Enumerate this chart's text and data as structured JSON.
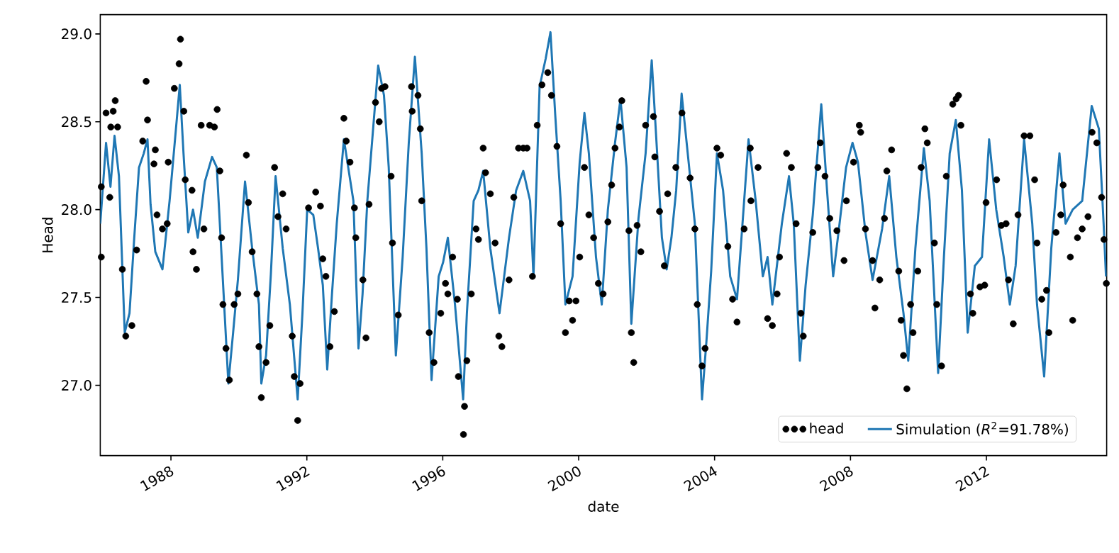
{
  "chart_data": {
    "type": "scatter",
    "xlabel": "date",
    "ylabel": "Head",
    "xlim": [
      1985.92,
      2015.54
    ],
    "ylim": [
      26.6,
      29.11
    ],
    "xticks": [
      1988,
      1992,
      1996,
      2000,
      2004,
      2008,
      2012
    ],
    "yticks": [
      {
        "value": 27,
        "label": "27.0"
      },
      {
        "value": 27.5,
        "label": "27.5"
      },
      {
        "value": 28,
        "label": "28.0"
      },
      {
        "value": 28.5,
        "label": "28.5"
      },
      {
        "value": 29,
        "label": "29.0"
      }
    ],
    "legend": "bottom right",
    "series": [
      {
        "name": "head",
        "marker": "circle",
        "color": "#000000",
        "x": [
          1985.95,
          1985.95,
          1986.09,
          1986.3,
          1986.36,
          1986.23,
          1986.43,
          1986.2,
          1986.57,
          1986.67,
          1986.85,
          1986.99,
          1987.27,
          1987.31,
          1987.17,
          1987.5,
          1987.54,
          1987.59,
          1987.75,
          1987.89,
          1987.92,
          1988.1,
          1988.24,
          1988.28,
          1988.38,
          1988.42,
          1988.62,
          1988.65,
          1988.75,
          1988.89,
          1988.97,
          1989.14,
          1989.28,
          1989.36,
          1989.44,
          1989.49,
          1989.53,
          1989.62,
          1989.72,
          1989.86,
          1989.97,
          1990.22,
          1990.28,
          1990.39,
          1990.53,
          1990.66,
          1990.59,
          1990.8,
          1990.91,
          1991.05,
          1991.15,
          1991.29,
          1991.39,
          1991.57,
          1991.63,
          1991.73,
          1991.8,
          1992.05,
          1992.26,
          1992.4,
          1992.47,
          1992.56,
          1992.68,
          1992.81,
          1993.09,
          1993.16,
          1993.27,
          1993.4,
          1993.44,
          1993.65,
          1993.74,
          1993.83,
          1994.02,
          1994.13,
          1994.2,
          1994.3,
          1994.48,
          1994.52,
          1994.69,
          1995.08,
          1995.1,
          1995.27,
          1995.34,
          1995.38,
          1995.6,
          1995.74,
          1995.94,
          1996.08,
          1996.15,
          1996.29,
          1996.43,
          1996.46,
          1996.61,
          1996.64,
          1996.71,
          1996.84,
          1996.98,
          1997.05,
          1997.19,
          1997.26,
          1997.4,
          1997.54,
          1997.65,
          1997.74,
          1997.95,
          1998.09,
          1998.23,
          1998.37,
          1998.48,
          1998.64,
          1998.78,
          1998.92,
          1999.09,
          1999.2,
          1999.36,
          1999.47,
          1999.61,
          1999.72,
          1999.82,
          1999.92,
          2000.03,
          2000.17,
          2000.3,
          2000.44,
          2000.58,
          2000.72,
          2000.86,
          2000.97,
          2001.07,
          2001.2,
          2001.27,
          2001.48,
          2001.55,
          2001.62,
          2001.72,
          2001.83,
          2001.97,
          2002.2,
          2002.24,
          2002.38,
          2002.52,
          2002.62,
          2002.86,
          2003.04,
          2003.28,
          2003.42,
          2003.49,
          2003.63,
          2003.72,
          2004.07,
          2004.18,
          2004.39,
          2004.53,
          2004.66,
          2004.87,
          2005.05,
          2005.07,
          2005.28,
          2005.56,
          2005.7,
          2005.84,
          2005.91,
          2006.12,
          2006.26,
          2006.4,
          2006.54,
          2006.61,
          2006.89,
          2007.04,
          2007.11,
          2007.25,
          2007.39,
          2007.6,
          2007.81,
          2007.88,
          2008.09,
          2008.26,
          2008.3,
          2008.44,
          2008.65,
          2008.72,
          2008.86,
          2009.0,
          2009.07,
          2009.21,
          2009.42,
          2009.49,
          2009.56,
          2009.66,
          2009.77,
          2009.84,
          2009.98,
          2010.08,
          2010.19,
          2010.26,
          2010.47,
          2010.54,
          2010.68,
          2010.82,
          2011.01,
          2011.11,
          2011.18,
          2011.25,
          2011.53,
          2011.6,
          2011.81,
          2011.95,
          2011.99,
          2012.3,
          2012.44,
          2012.58,
          2012.65,
          2012.79,
          2012.93,
          2013.11,
          2013.28,
          2013.42,
          2013.49,
          2013.63,
          2013.77,
          2013.84,
          2014.05,
          2014.19,
          2014.26,
          2014.47,
          2014.54,
          2014.68,
          2014.82,
          2014.99,
          2015.11,
          2015.25,
          2015.39,
          2015.46,
          2015.53
        ],
        "values": [
          28.13,
          27.73,
          28.55,
          28.56,
          28.62,
          28.47,
          28.47,
          28.07,
          27.66,
          27.28,
          27.34,
          27.77,
          28.73,
          28.51,
          28.39,
          28.26,
          28.34,
          27.97,
          27.89,
          27.92,
          28.27,
          28.69,
          28.83,
          28.97,
          28.56,
          28.17,
          28.11,
          27.76,
          27.66,
          28.48,
          27.89,
          28.48,
          28.47,
          28.57,
          28.22,
          27.84,
          27.46,
          27.21,
          27.03,
          27.46,
          27.52,
          28.31,
          28.04,
          27.76,
          27.52,
          26.93,
          27.22,
          27.13,
          27.34,
          28.24,
          27.96,
          28.09,
          27.89,
          27.28,
          27.05,
          26.8,
          27.01,
          28.01,
          28.1,
          28.02,
          27.72,
          27.62,
          27.22,
          27.42,
          28.52,
          28.39,
          28.27,
          28.01,
          27.84,
          27.6,
          27.27,
          28.03,
          28.61,
          28.5,
          28.69,
          28.7,
          28.19,
          27.81,
          27.4,
          28.7,
          28.56,
          28.65,
          28.46,
          28.05,
          27.3,
          27.13,
          27.41,
          27.58,
          27.52,
          27.73,
          27.49,
          27.05,
          26.72,
          26.88,
          27.14,
          27.52,
          27.89,
          27.83,
          28.35,
          28.21,
          28.09,
          27.81,
          27.28,
          27.22,
          27.6,
          28.07,
          28.35,
          28.35,
          28.35,
          27.62,
          28.48,
          28.71,
          28.78,
          28.65,
          28.36,
          27.92,
          27.3,
          27.48,
          27.37,
          27.48,
          27.73,
          28.24,
          27.97,
          27.84,
          27.58,
          27.52,
          27.93,
          28.14,
          28.35,
          28.47,
          28.62,
          27.88,
          27.3,
          27.13,
          27.91,
          27.76,
          28.48,
          28.53,
          28.3,
          27.99,
          27.68,
          28.09,
          28.24,
          28.55,
          28.18,
          27.89,
          27.46,
          27.11,
          27.21,
          28.35,
          28.31,
          27.79,
          27.49,
          27.36,
          27.89,
          28.35,
          28.05,
          28.24,
          27.38,
          27.34,
          27.52,
          27.73,
          28.32,
          28.24,
          27.92,
          27.41,
          27.28,
          27.87,
          28.24,
          28.38,
          28.19,
          27.95,
          27.88,
          27.71,
          28.05,
          28.27,
          28.48,
          28.44,
          27.89,
          27.71,
          27.44,
          27.6,
          27.95,
          28.22,
          28.34,
          27.65,
          27.37,
          27.17,
          26.98,
          27.46,
          27.3,
          27.65,
          28.24,
          28.46,
          28.38,
          27.81,
          27.46,
          27.11,
          28.19,
          28.6,
          28.63,
          28.65,
          28.48,
          27.52,
          27.41,
          27.56,
          27.57,
          28.04,
          28.17,
          27.91,
          27.92,
          27.6,
          27.35,
          27.97,
          28.42,
          28.42,
          28.17,
          27.81,
          27.49,
          27.54,
          27.3,
          27.87,
          27.97,
          28.14,
          27.73,
          27.37,
          27.84,
          27.89,
          27.96,
          28.44,
          28.38,
          28.07,
          27.83,
          27.58
        ]
      },
      {
        "name": "Simulation (*R*$^{2}$=91.78%)",
        "type": "line",
        "color": "#1f77b4",
        "x": [
          1985.92,
          1986.09,
          1986.22,
          1986.34,
          1986.47,
          1986.64,
          1986.78,
          1986.92,
          1987.06,
          1987.2,
          1987.31,
          1987.4,
          1987.54,
          1987.75,
          1987.96,
          1988.17,
          1988.26,
          1988.37,
          1988.51,
          1988.65,
          1988.79,
          1989.0,
          1989.21,
          1989.35,
          1989.55,
          1989.69,
          1989.83,
          1989.97,
          1990.18,
          1990.39,
          1990.59,
          1990.66,
          1990.8,
          1990.94,
          1991.08,
          1991.29,
          1991.5,
          1991.73,
          1991.87,
          1992.01,
          1992.19,
          1992.33,
          1992.47,
          1992.6,
          1992.74,
          1992.88,
          1993.09,
          1993.37,
          1993.52,
          1993.64,
          1993.78,
          1994.1,
          1994.27,
          1994.41,
          1994.62,
          1994.82,
          1995.0,
          1995.18,
          1995.38,
          1995.52,
          1995.67,
          1995.88,
          1996.01,
          1996.15,
          1996.36,
          1996.6,
          1996.71,
          1996.91,
          1997.05,
          1997.19,
          1997.4,
          1997.67,
          1997.95,
          1998.16,
          1998.37,
          1998.57,
          1998.67,
          1998.85,
          1999.03,
          1999.17,
          1999.31,
          1999.47,
          1999.61,
          1999.82,
          2000.03,
          2000.17,
          2000.3,
          2000.51,
          2000.68,
          2000.86,
          2001.07,
          2001.23,
          2001.41,
          2001.55,
          2001.76,
          2001.97,
          2002.15,
          2002.31,
          2002.45,
          2002.59,
          2002.73,
          2002.87,
          2003.03,
          2003.21,
          2003.42,
          2003.63,
          2003.76,
          2003.9,
          2004.07,
          2004.25,
          2004.46,
          2004.66,
          2004.87,
          2005.0,
          2005.21,
          2005.42,
          2005.56,
          2005.7,
          2005.98,
          2006.19,
          2006.33,
          2006.51,
          2006.68,
          2006.89,
          2007.14,
          2007.31,
          2007.49,
          2007.66,
          2007.87,
          2008.06,
          2008.22,
          2008.44,
          2008.65,
          2008.93,
          2009.14,
          2009.35,
          2009.56,
          2009.7,
          2009.91,
          2010.16,
          2010.33,
          2010.58,
          2010.75,
          2010.92,
          2011.1,
          2011.28,
          2011.45,
          2011.66,
          2011.87,
          2012.08,
          2012.29,
          2012.51,
          2012.69,
          2012.86,
          2013.11,
          2013.35,
          2013.49,
          2013.7,
          2013.91,
          2014.15,
          2014.33,
          2014.54,
          2014.82,
          2014.96,
          2015.1,
          2015.31,
          2015.45,
          2015.52
        ],
        "values": [
          27.92,
          28.38,
          28.13,
          28.42,
          28.19,
          27.3,
          27.41,
          27.84,
          28.24,
          28.32,
          28.4,
          28.03,
          27.76,
          27.66,
          28.05,
          28.51,
          28.71,
          28.32,
          27.87,
          28.0,
          27.84,
          28.16,
          28.3,
          28.24,
          27.52,
          27.01,
          27.3,
          27.6,
          28.16,
          27.78,
          27.46,
          27.01,
          27.17,
          27.63,
          28.19,
          27.78,
          27.46,
          26.92,
          27.41,
          28.0,
          27.97,
          27.78,
          27.57,
          27.09,
          27.52,
          27.92,
          28.4,
          28.05,
          27.21,
          27.52,
          28.05,
          28.82,
          28.65,
          28.24,
          27.17,
          27.73,
          28.38,
          28.87,
          28.32,
          27.78,
          27.03,
          27.62,
          27.7,
          27.84,
          27.46,
          26.92,
          27.41,
          28.05,
          28.11,
          28.22,
          27.78,
          27.41,
          27.84,
          28.11,
          28.22,
          28.05,
          27.62,
          28.7,
          28.86,
          29.01,
          28.54,
          28.05,
          27.46,
          27.62,
          28.27,
          28.55,
          28.32,
          27.73,
          27.46,
          28.0,
          28.38,
          28.63,
          28.24,
          27.35,
          27.95,
          28.32,
          28.85,
          28.32,
          27.84,
          27.66,
          27.84,
          28.11,
          28.66,
          28.32,
          27.92,
          26.92,
          27.25,
          27.65,
          28.32,
          28.11,
          27.62,
          27.49,
          28.05,
          28.4,
          28.05,
          27.62,
          27.73,
          27.46,
          27.92,
          28.19,
          27.92,
          27.14,
          27.57,
          27.97,
          28.6,
          28.11,
          27.62,
          27.89,
          28.24,
          28.38,
          28.27,
          27.87,
          27.6,
          27.89,
          28.19,
          27.73,
          27.41,
          27.14,
          27.78,
          28.35,
          28.05,
          27.07,
          27.73,
          28.32,
          28.51,
          28.11,
          27.3,
          27.68,
          27.73,
          28.4,
          28.0,
          27.73,
          27.46,
          27.68,
          28.4,
          27.92,
          27.46,
          27.05,
          27.78,
          28.32,
          27.92,
          28.0,
          28.05,
          28.32,
          28.59,
          28.46,
          27.92,
          27.62
        ]
      }
    ]
  }
}
